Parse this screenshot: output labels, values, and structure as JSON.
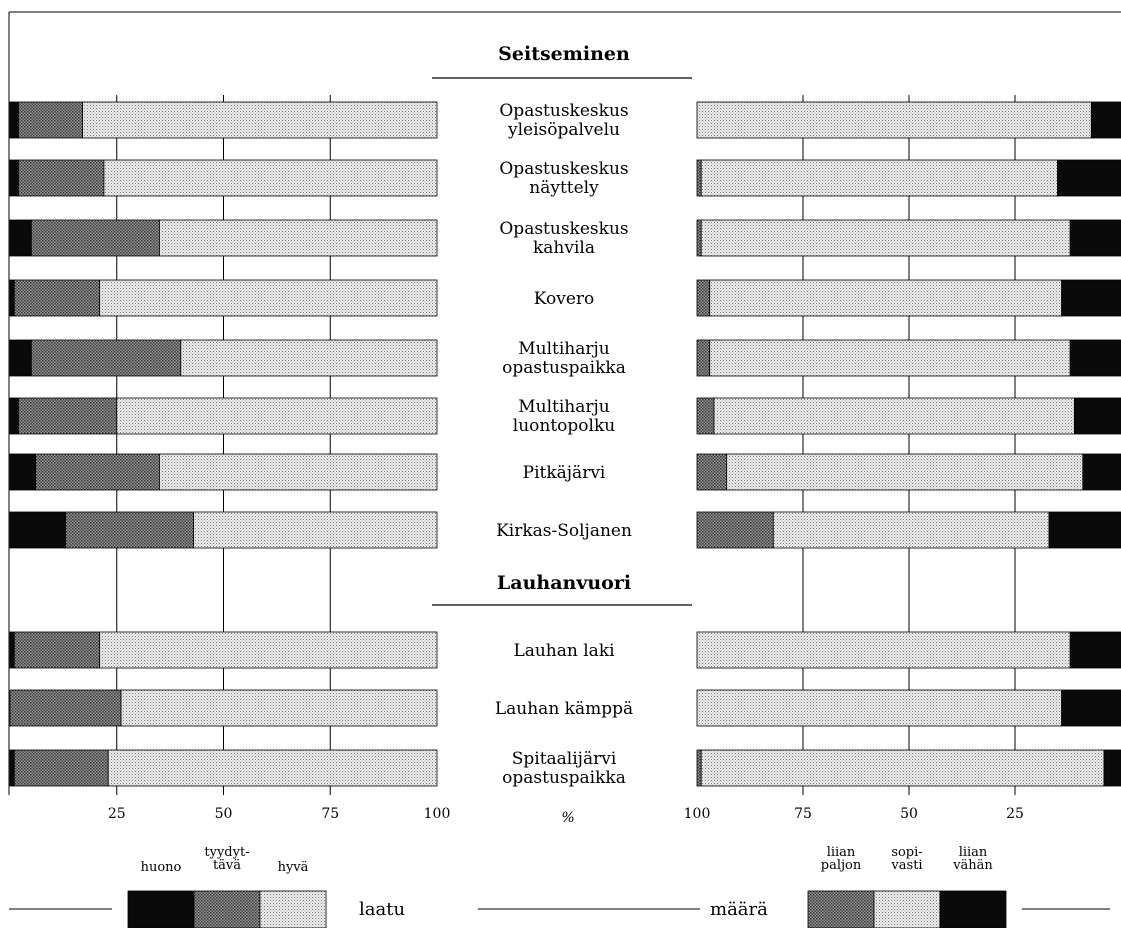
{
  "chart_data": {
    "type": "bar",
    "stacked": true,
    "sections": [
      {
        "title": "Seitseminen",
        "rows": [
          {
            "label": [
              "Opastuskeskus",
              "yleisöpalvelu"
            ],
            "laatu": [
              2,
              15,
              83
            ],
            "maara": [
              0,
              93,
              7
            ]
          },
          {
            "label": [
              "Opastuskeskus",
              "näyttely"
            ],
            "laatu": [
              2,
              20,
              78
            ],
            "maara": [
              1,
              84,
              15
            ]
          },
          {
            "label": [
              "Opastuskeskus",
              "kahvila"
            ],
            "laatu": [
              5,
              30,
              65
            ],
            "maara": [
              1,
              87,
              12
            ]
          },
          {
            "label": [
              "Kovero"
            ],
            "laatu": [
              1,
              20,
              79
            ],
            "maara": [
              3,
              83,
              14
            ]
          },
          {
            "label": [
              "Multiharju",
              "opastuspaikka"
            ],
            "laatu": [
              5,
              35,
              60
            ],
            "maara": [
              3,
              85,
              12
            ]
          },
          {
            "label": [
              "Multiharju",
              "luontopolku"
            ],
            "laatu": [
              2,
              23,
              75
            ],
            "maara": [
              4,
              85,
              11
            ]
          },
          {
            "label": [
              "Pitkäjärvi"
            ],
            "laatu": [
              6,
              29,
              65
            ],
            "maara": [
              7,
              84,
              9
            ]
          },
          {
            "label": [
              "Kirkas-Soljanen"
            ],
            "laatu": [
              13,
              30,
              57
            ],
            "maara": [
              18,
              65,
              17
            ]
          }
        ]
      },
      {
        "title": "Lauhanvuori",
        "rows": [
          {
            "label": [
              "Lauhan laki"
            ],
            "laatu": [
              1,
              20,
              79
            ],
            "maara": [
              0,
              88,
              12
            ]
          },
          {
            "label": [
              "Lauhan kämppä"
            ],
            "laatu": [
              0,
              26,
              74
            ],
            "maara": [
              0,
              86,
              14
            ]
          },
          {
            "label": [
              "Spitaalijärvi",
              "opastuspaikka"
            ],
            "laatu": [
              1,
              22,
              77
            ],
            "maara": [
              1,
              95,
              4
            ]
          }
        ]
      }
    ],
    "left_axis": {
      "ticks": [
        "25",
        "50",
        "75",
        "100"
      ],
      "range": [
        0,
        100
      ]
    },
    "right_axis": {
      "ticks": [
        "100",
        "75",
        "50",
        "25"
      ],
      "range": [
        100,
        0
      ]
    },
    "axis_unit": "%",
    "legend_laatu": {
      "title": "laatu",
      "items": [
        {
          "label": [
            "huono"
          ],
          "fill": "black"
        },
        {
          "label": [
            "tyydyt-",
            "tävä"
          ],
          "fill": "dark"
        },
        {
          "label": [
            "hyvä"
          ],
          "fill": "light"
        }
      ]
    },
    "legend_maara": {
      "title": "määrä",
      "items": [
        {
          "label": [
            "liian",
            "paljon"
          ],
          "fill": "dark"
        },
        {
          "label": [
            "sopi-",
            "vasti"
          ],
          "fill": "light"
        },
        {
          "label": [
            "liian",
            "vähän"
          ],
          "fill": "black"
        }
      ]
    },
    "colors": {
      "black": "#0a0a0a",
      "dark": "#8c8c8c",
      "light": "#d9d9d9",
      "grid": "#000000"
    }
  }
}
